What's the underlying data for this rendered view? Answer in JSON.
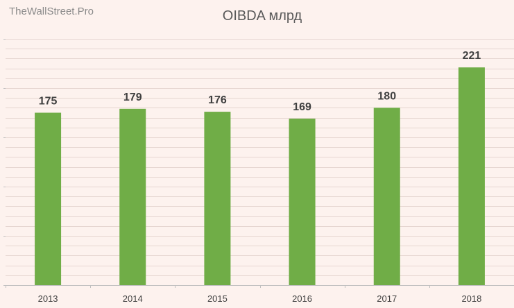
{
  "watermark": "TheWallStreet.Pro",
  "chart_data": {
    "type": "bar",
    "title": "OIBDA млрд",
    "categories": [
      "2013",
      "2014",
      "2015",
      "2016",
      "2017",
      "2018"
    ],
    "series": [
      {
        "values": [
          175,
          179,
          176,
          169,
          180,
          221
        ],
        "color": "#70ad47"
      }
    ],
    "data_labels": [
      "175",
      "179",
      "176",
      "169",
      "180",
      "221"
    ],
    "ylim": [
      0,
      250
    ],
    "xlabel": "",
    "ylabel": "",
    "grid": true,
    "legend": "none",
    "background_color": "#fdf2ee",
    "grid_color": "#e6d6d1"
  }
}
